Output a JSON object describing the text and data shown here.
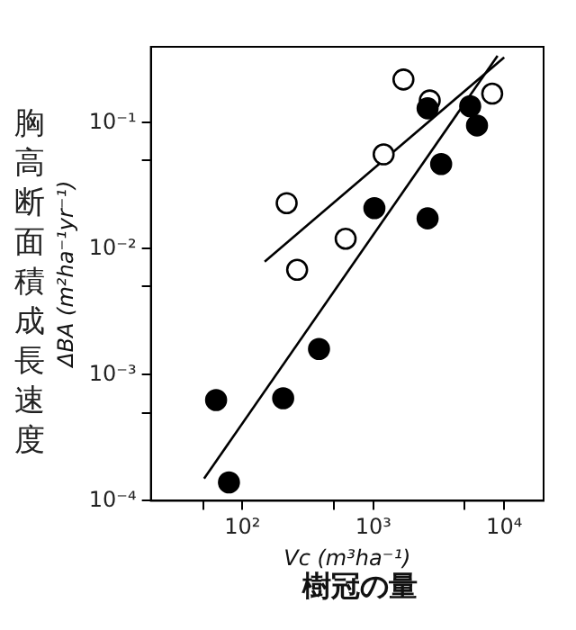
{
  "chart_data": {
    "type": "scatter",
    "xlabel": "Vc (m³ha⁻¹)",
    "ylabel": "ΔBA (m²ha⁻¹yr⁻¹)",
    "annotations": [
      "樹冠の量",
      "胸高断面積成長速度"
    ],
    "log": "xy",
    "grid": false,
    "legend": false,
    "marker": "circle",
    "xlim": [
      20,
      20000
    ],
    "ylim": [
      0.0001,
      0.4
    ],
    "xticks": [
      {
        "value": 50,
        "label": null
      },
      {
        "value": 100,
        "label": "10²"
      },
      {
        "value": 500,
        "label": null
      },
      {
        "value": 1000,
        "label": "10³"
      },
      {
        "value": 5000,
        "label": null
      },
      {
        "value": 10000,
        "label": "10⁴"
      }
    ],
    "yticks": [
      {
        "value": 0.0001,
        "label": "10⁻⁴"
      },
      {
        "value": 0.0005,
        "label": null
      },
      {
        "value": 0.001,
        "label": "10⁻³"
      },
      {
        "value": 0.005,
        "label": null
      },
      {
        "value": 0.01,
        "label": "10⁻²"
      },
      {
        "value": 0.05,
        "label": null
      },
      {
        "value": 0.1,
        "label": "10⁻¹"
      }
    ],
    "series": [
      {
        "color": "#000000",
        "x": [
          63,
          79,
          205,
          385,
          1020,
          2600,
          3300,
          2600,
          5500,
          6200
        ],
        "values": [
          0.00063,
          0.00014,
          0.00065,
          0.0016,
          0.021,
          0.0174,
          0.047,
          0.13,
          0.135,
          0.095
        ]
      },
      {
        "color": "#000000",
        "x": [
          218,
          262,
          615,
          1200,
          1700,
          2700,
          8100
        ],
        "values": [
          0.023,
          0.0068,
          0.012,
          0.056,
          0.22,
          0.15,
          0.17
        ]
      },
      {
        "type": "line",
        "color": "#000000",
        "marker": "none",
        "x": [
          51,
          8900
        ],
        "values": [
          0.00015,
          0.34
        ]
      },
      {
        "type": "line",
        "color": "#000000",
        "marker": "none",
        "x": [
          148,
          10000
        ],
        "values": [
          0.0079,
          0.33
        ]
      }
    ]
  }
}
